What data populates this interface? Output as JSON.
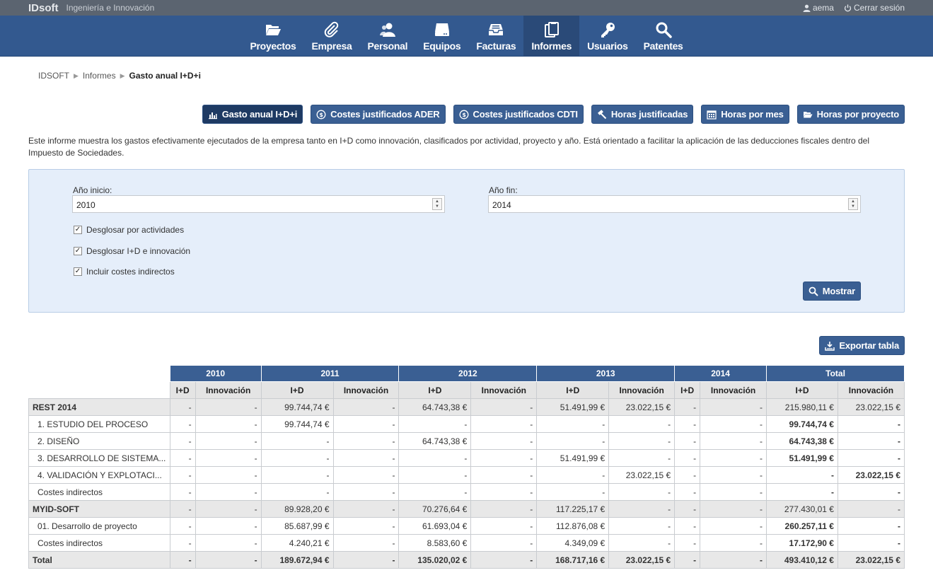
{
  "topbar": {
    "brand": "IDsoft",
    "tagline": "Ingeniería e Innovación",
    "user": "aema",
    "logout": "Cerrar sesión"
  },
  "nav": [
    {
      "label": "Proyectos",
      "icon": "folder-open-icon"
    },
    {
      "label": "Empresa",
      "icon": "paperclip-icon"
    },
    {
      "label": "Personal",
      "icon": "users-icon"
    },
    {
      "label": "Equipos",
      "icon": "hdd-icon"
    },
    {
      "label": "Facturas",
      "icon": "inbox-icon"
    },
    {
      "label": "Informes",
      "icon": "clipboard-icon",
      "active": true
    },
    {
      "label": "Usuarios",
      "icon": "key-icon"
    },
    {
      "label": "Patentes",
      "icon": "search-icon"
    }
  ],
  "breadcrumb": {
    "root": "IDSOFT",
    "section": "Informes",
    "current": "Gasto anual I+D+i"
  },
  "report_tabs": [
    {
      "label": "Gasto anual I+D+i",
      "icon": "bar-chart-icon",
      "active": true
    },
    {
      "label": "Costes justificados ADER",
      "icon": "coin-icon"
    },
    {
      "label": "Costes justificados CDTI",
      "icon": "coin-icon"
    },
    {
      "label": "Horas justificadas",
      "icon": "hammer-icon"
    },
    {
      "label": "Horas por mes",
      "icon": "calendar-icon"
    },
    {
      "label": "Horas por proyecto",
      "icon": "folder-open-icon"
    }
  ],
  "description": "Este informe muestra los gastos efectivamente ejecutados de la empresa tanto en I+D como innovación, clasificados por actividad, proyecto y año. Está orientado a facilitar la aplicación de las deducciones fiscales dentro del Impuesto de Sociedades.",
  "filters": {
    "start_label": "Año inicio:",
    "start_value": "2010",
    "end_label": "Año fin:",
    "end_value": "2014",
    "check_activities": "Desglosar por actividades",
    "check_idi": "Desglosar I+D e innovación",
    "check_indirect": "Incluir costes indirectos",
    "show_button": "Mostrar"
  },
  "export_button": "Exportar tabla",
  "table": {
    "years": [
      "2010",
      "2011",
      "2012",
      "2013",
      "2014",
      "Total"
    ],
    "sub": [
      "I+D",
      "Innovación"
    ],
    "rows": [
      {
        "type": "group",
        "label": "REST 2014",
        "cells": [
          "-",
          "-",
          "99.744,74 €",
          "-",
          "64.743,38 €",
          "-",
          "51.491,99 €",
          "23.022,15 €",
          "-",
          "-",
          "215.980,11 €",
          "23.022,15 €"
        ]
      },
      {
        "type": "child",
        "label": "1. ESTUDIO DEL PROCESO",
        "cells": [
          "-",
          "-",
          "99.744,74 €",
          "-",
          "-",
          "-",
          "-",
          "-",
          "-",
          "-",
          "99.744,74 €",
          "-"
        ]
      },
      {
        "type": "child",
        "label": "2. DISEÑO",
        "cells": [
          "-",
          "-",
          "-",
          "-",
          "64.743,38 €",
          "-",
          "-",
          "-",
          "-",
          "-",
          "64.743,38 €",
          "-"
        ]
      },
      {
        "type": "child",
        "label": "3. DESARROLLO DE SISTEMA...",
        "cells": [
          "-",
          "-",
          "-",
          "-",
          "-",
          "-",
          "51.491,99 €",
          "-",
          "-",
          "-",
          "51.491,99 €",
          "-"
        ]
      },
      {
        "type": "child",
        "label": "4. VALIDACIÓN Y EXPLOTACI...",
        "cells": [
          "-",
          "-",
          "-",
          "-",
          "-",
          "-",
          "-",
          "23.022,15 €",
          "-",
          "-",
          "-",
          "23.022,15 €"
        ]
      },
      {
        "type": "child",
        "label": "Costes indirectos",
        "cells": [
          "-",
          "-",
          "-",
          "-",
          "-",
          "-",
          "-",
          "-",
          "-",
          "-",
          "-",
          "-"
        ]
      },
      {
        "type": "group",
        "label": "MYID-SOFT",
        "cells": [
          "-",
          "-",
          "89.928,20 €",
          "-",
          "70.276,64 €",
          "-",
          "117.225,17 €",
          "-",
          "-",
          "-",
          "277.430,01 €",
          "-"
        ]
      },
      {
        "type": "child",
        "label": "01. Desarrollo de proyecto",
        "cells": [
          "-",
          "-",
          "85.687,99 €",
          "-",
          "61.693,04 €",
          "-",
          "112.876,08 €",
          "-",
          "-",
          "-",
          "260.257,11 €",
          "-"
        ]
      },
      {
        "type": "child",
        "label": "Costes indirectos",
        "cells": [
          "-",
          "-",
          "4.240,21 €",
          "-",
          "8.583,60 €",
          "-",
          "4.349,09 €",
          "-",
          "-",
          "-",
          "17.172,90 €",
          "-"
        ]
      },
      {
        "type": "total",
        "label": "Total",
        "cells": [
          "-",
          "-",
          "189.672,94 €",
          "-",
          "135.020,02 €",
          "-",
          "168.717,16 €",
          "23.022,15 €",
          "-",
          "-",
          "493.410,12 €",
          "23.022,15 €"
        ]
      }
    ]
  },
  "colors": {
    "navbar": "#33598f",
    "button": "#3a5f93",
    "panel": "#e5eefa"
  }
}
